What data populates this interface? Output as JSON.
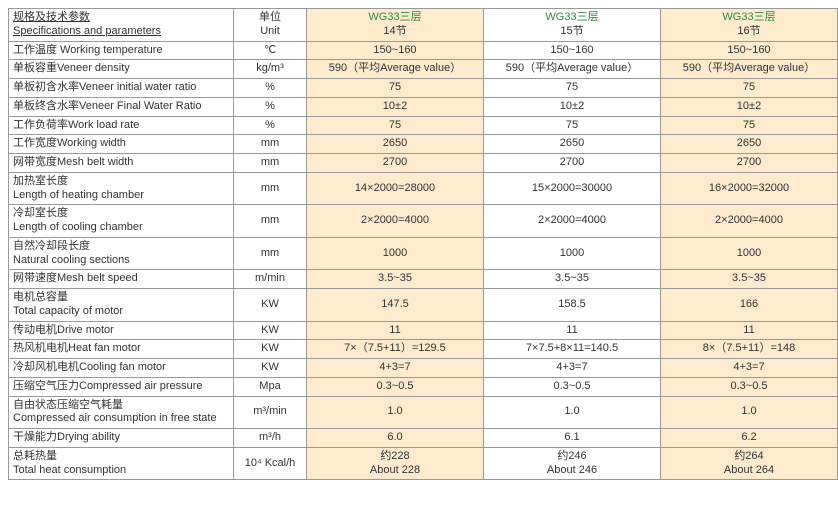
{
  "header": {
    "spec_label": "规格及技术参数\nSpecifications and parameters",
    "unit_label": "单位\nUnit",
    "cols": [
      {
        "title": "WG33三层",
        "sub": "14节",
        "bg": "#feebce"
      },
      {
        "title": "WG33三层",
        "sub": "15节",
        "bg": "#ffffff"
      },
      {
        "title": "WG33三层",
        "sub": "16节",
        "bg": "#feebce"
      }
    ]
  },
  "rows": [
    {
      "spec": "工作温度 Working temperature",
      "unit": "℃",
      "v": [
        "150~160",
        "150~160",
        "150~160"
      ]
    },
    {
      "spec": "单板容重Veneer density",
      "unit": "kg/m³",
      "v": [
        "590（平均Average value）",
        "590（平均Average value）",
        "590（平均Average value）"
      ]
    },
    {
      "spec": "单板初含水率Veneer initial water ratio",
      "unit": "%",
      "v": [
        "75",
        "75",
        "75"
      ]
    },
    {
      "spec": "单板终含水率Veneer Final Water Ratio",
      "unit": "%",
      "v": [
        "10±2",
        "10±2",
        "10±2"
      ]
    },
    {
      "spec": "工作负荷率Work load rate",
      "unit": "%",
      "v": [
        "75",
        "75",
        "75"
      ]
    },
    {
      "spec": "工作宽度Working width",
      "unit": "mm",
      "v": [
        "2650",
        "2650",
        "2650"
      ]
    },
    {
      "spec": "网带宽度Mesh belt width",
      "unit": "mm",
      "v": [
        "2700",
        "2700",
        "2700"
      ]
    },
    {
      "spec": "加热室长度\nLength of heating chamber",
      "unit": "mm",
      "v": [
        "14×2000=28000",
        "15×2000=30000",
        "16×2000=32000"
      ]
    },
    {
      "spec": "冷却室长度\nLength of cooling chamber",
      "unit": "mm",
      "v": [
        "2×2000=4000",
        "2×2000=4000",
        "2×2000=4000"
      ]
    },
    {
      "spec": "自然冷却段长度\nNatural cooling sections",
      "unit": "mm",
      "v": [
        "1000",
        "1000",
        "1000"
      ]
    },
    {
      "spec": "网带速度Mesh belt speed",
      "unit": "m/min",
      "v": [
        "3.5~35",
        "3.5~35",
        "3.5~35"
      ]
    },
    {
      "spec": "电机总容量\nTotal capacity of motor",
      "unit": "KW",
      "v": [
        "147.5",
        "158.5",
        "166"
      ]
    },
    {
      "spec": "传动电机Drive motor",
      "unit": "KW",
      "v": [
        "11",
        "11",
        "11"
      ]
    },
    {
      "spec": "热风机电机Heat fan motor",
      "unit": "KW",
      "v": [
        "7×（7.5+11）=129.5",
        "7×7.5+8×11=140.5",
        "8×（7.5+11）=148"
      ]
    },
    {
      "spec": "冷却风机电机Cooling fan motor",
      "unit": "KW",
      "v": [
        "4+3=7",
        "4+3=7",
        "4+3=7"
      ]
    },
    {
      "spec": "压缩空气压力Compressed air pressure",
      "unit": "Mpa",
      "v": [
        "0.3~0.5",
        "0.3~0.5",
        "0.3~0.5"
      ]
    },
    {
      "spec": "自由状态压缩空气耗量\nCompressed air consumption in free state",
      "unit": "m³/min",
      "v": [
        "1.0",
        "1.0",
        "1.0"
      ]
    },
    {
      "spec": "干燥能力Drying ability",
      "unit": "m³/h",
      "v": [
        "6.0",
        "6.1",
        "6.2"
      ]
    },
    {
      "spec": "总耗热量\nTotal heat consumption",
      "unit": "10⁴ Kcal/h",
      "v": [
        "约228\nAbout 228",
        "约246\nAbout 246",
        "约264\nAbout 264"
      ]
    }
  ],
  "style": {
    "alt_bg": "#feebce",
    "norm_bg": "#ffffff",
    "border_color": "#999999",
    "title_color": "#2e8b3e",
    "text_color": "#333333",
    "font_size": 11
  }
}
